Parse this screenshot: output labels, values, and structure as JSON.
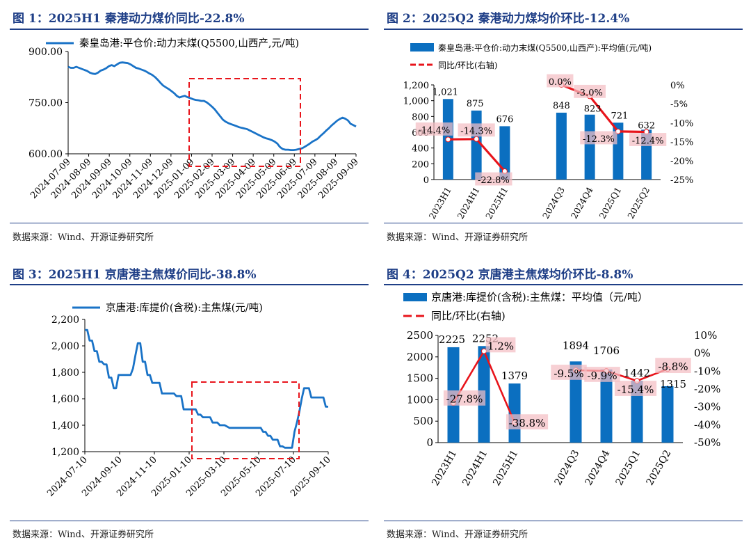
{
  "source_text": "数据来源：Wind、开源证券研究所",
  "figures": [
    {
      "title": "图 1：2025H1 秦港动力煤价同比-22.8%",
      "chart_data": {
        "type": "line",
        "legend": [
          "秦皇岛港:平仓价:动力末煤(Q5500,山西产,元/吨)"
        ],
        "y_ticks": [
          "600.00",
          "750.00",
          "900.00"
        ],
        "ylim": [
          600,
          900
        ],
        "x_ticks": [
          "2024-07-09",
          "2024-08-09",
          "2024-09-09",
          "2024-10-09",
          "2024-11-09",
          "2024-12-09",
          "2025-01-09",
          "2025-02-09",
          "2025-03-09",
          "2025-04-09",
          "2025-05-09",
          "2025-06-09",
          "2025-07-09",
          "2025-08-09",
          "2025-09-09"
        ],
        "series": [
          {
            "values": [
              855,
              852,
              852,
              855,
              852,
              849,
              846,
              843,
              838,
              835,
              834,
              838,
              844,
              847,
              851,
              857,
              860,
              857,
              862,
              867,
              868,
              867,
              866,
              862,
              857,
              852,
              850,
              847,
              844,
              840,
              835,
              831,
              825,
              817,
              808,
              800,
              795,
              790,
              784,
              778,
              770,
              765,
              768,
              770,
              766,
              763,
              760,
              758,
              757,
              755,
              755,
              751,
              745,
              738,
              730,
              720,
              710,
              700,
              694,
              690,
              687,
              684,
              681,
              678,
              676,
              674,
              672,
              668,
              664,
              660,
              656,
              652,
              648,
              645,
              643,
              640,
              636,
              630,
              620,
              614,
              612,
              612,
              611,
              611,
              612,
              614,
              616,
              620,
              625,
              630,
              636,
              640,
              645,
              653,
              660,
              668,
              675,
              683,
              690,
              697,
              702,
              706,
              703,
              698,
              688,
              684,
              680
            ]
          }
        ]
      }
    },
    {
      "title": "图 2：2025Q2 秦港动力煤均价环比-12.4%",
      "chart_data": {
        "type": "bar",
        "legend": [
          "秦皇岛港:平仓价:动力末煤(Q5500,山西产):平均值(元/吨)",
          "同比/环比(右轴)"
        ],
        "categories": [
          "2023H1",
          "2024H1",
          "2025H1",
          "",
          "2024Q3",
          "2024Q4",
          "2025Q1",
          "2025Q2"
        ],
        "bar_values": [
          1021,
          875,
          676,
          null,
          848,
          823,
          721,
          632
        ],
        "bar_labels": [
          "1,021",
          "875",
          "676",
          "",
          "848",
          "823",
          "721",
          "632"
        ],
        "ratio_values": [
          -14.4,
          -14.3,
          -22.8,
          null,
          0.0,
          -3.0,
          -12.3,
          -12.4
        ],
        "ratio_labels": [
          "-14.4%",
          "-14.3%",
          "-22.8%",
          "",
          "0.0%",
          "-3.0%",
          "-12.3%",
          "-12.4%"
        ],
        "y_left_ticks": [
          "0",
          "200",
          "400",
          "600",
          "800",
          "1,000",
          "1,200"
        ],
        "y_right_ticks": [
          "0%",
          "-5%",
          "-10%",
          "-15%",
          "-20%",
          "-25%"
        ],
        "ylim_left": [
          0,
          1200
        ],
        "ylim_right": [
          -25,
          0
        ]
      }
    },
    {
      "title": "图 3：2025H1 京唐港主焦煤价同比-38.8%",
      "chart_data": {
        "type": "line",
        "legend": [
          "京唐港:库提价(含税):主焦煤(元/吨)"
        ],
        "y_ticks": [
          "1,200",
          "1,400",
          "1,600",
          "1,800",
          "2,000",
          "2,200"
        ],
        "ylim": [
          1200,
          2200
        ],
        "x_ticks": [
          "2024-07-10",
          "2024-09-10",
          "2024-11-10",
          "2025-01-10",
          "2025-03-10",
          "2025-05-10",
          "2025-07-10",
          "2025-09-10"
        ],
        "series": [
          {
            "values": [
              2120,
              2120,
              2040,
              2040,
              1960,
              1960,
              1880,
              1880,
              1860,
              1860,
              1760,
              1760,
              1680,
              1680,
              1780,
              1780,
              1780,
              1780,
              1780,
              1780,
              1830,
              1930,
              2020,
              2020,
              1880,
              1880,
              1780,
              1780,
              1720,
              1720,
              1720,
              1720,
              1640,
              1640,
              1640,
              1640,
              1640,
              1640,
              1620,
              1620,
              1620,
              1520,
              1520,
              1520,
              1520,
              1520,
              1520,
              1480,
              1480,
              1460,
              1460,
              1460,
              1460,
              1420,
              1420,
              1420,
              1400,
              1400,
              1400,
              1390,
              1380,
              1380,
              1380,
              1380,
              1380,
              1380,
              1380,
              1380,
              1380,
              1380,
              1380,
              1380,
              1380,
              1380,
              1350,
              1350,
              1320,
              1320,
              1290,
              1290,
              1290,
              1240,
              1240,
              1230,
              1230,
              1230,
              1230,
              1350,
              1420,
              1500,
              1600,
              1680,
              1680,
              1680,
              1610,
              1610,
              1610,
              1610,
              1610,
              1610,
              1540,
              1540
            ]
          }
        ]
      }
    },
    {
      "title": "图 4：2025Q2 京唐港主焦煤均价环比-8.8%",
      "chart_data": {
        "type": "bar",
        "legend": [
          "京唐港:库提价(含税):主焦煤：平均值（元/吨）",
          "同比/环比(右轴)"
        ],
        "categories": [
          "2023H1",
          "2024H1",
          "2025H1",
          "",
          "2024Q3",
          "2024Q4",
          "2025Q1",
          "2025Q2"
        ],
        "bar_values": [
          2225,
          2252,
          1379,
          null,
          1894,
          1706,
          1442,
          1315
        ],
        "bar_labels": [
          "2225",
          "2252",
          "1379",
          "",
          "1894",
          "1706",
          "1442",
          "1315"
        ],
        "ratio_values": [
          -27.8,
          1.2,
          -38.8,
          null,
          -9.5,
          -9.9,
          -15.4,
          -8.8
        ],
        "ratio_labels": [
          "-27.8%",
          "1.2%",
          "-38.8%",
          "",
          "-9.5%",
          "-9.9%",
          "-15.4%",
          "-8.8%"
        ],
        "y_left_ticks": [
          "0",
          "500",
          "1000",
          "1500",
          "2000",
          "2500"
        ],
        "y_right_ticks": [
          "10%",
          "0%",
          "-10%",
          "-20%",
          "-30%",
          "-40%",
          "-50%"
        ],
        "ylim_left": [
          0,
          2500
        ],
        "ylim_right": [
          -50,
          10
        ]
      }
    }
  ]
}
